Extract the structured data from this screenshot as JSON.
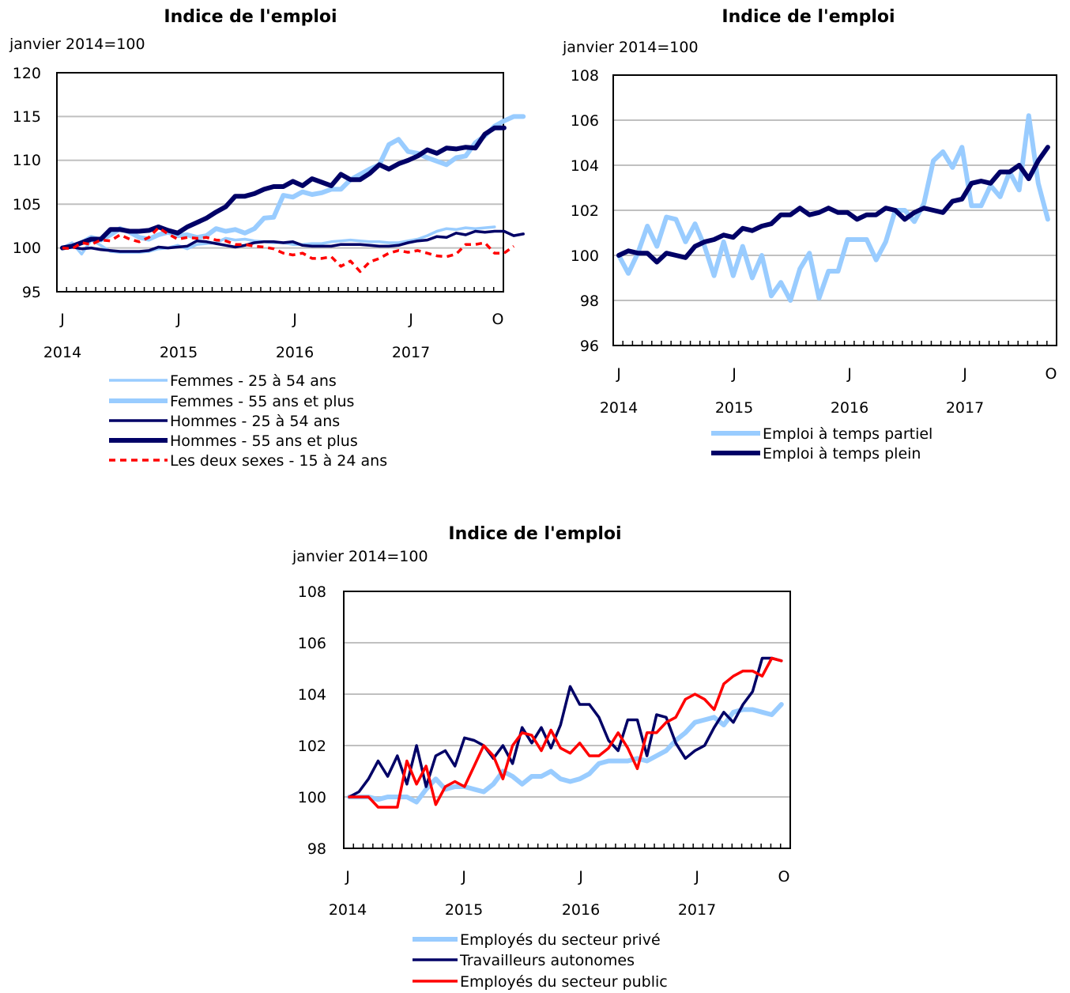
{
  "chart_data": [
    {
      "type": "line",
      "title": "Indice de l'emploi",
      "ylabel": "janvier 2014=100",
      "ylim": [
        95,
        120
      ],
      "yticks": [
        "95",
        "100",
        "105",
        "110",
        "115",
        "120"
      ],
      "x_tick_labels": [
        "J",
        "J",
        "J",
        "J",
        "O"
      ],
      "x_year_labels": [
        "2014",
        "2015",
        "2016",
        "2017"
      ],
      "x_range": "janvier 2014 – octobre 2017 (mensuel)",
      "grid": "horizontal",
      "legend_position": "bottom",
      "series": [
        {
          "name": "Femmes - 25 à 54 ans",
          "color": "#99ccff",
          "style": "thin",
          "values": [
            100.0,
            100.6,
            99.3,
            100.9,
            100.3,
            99.6,
            99.5,
            99.5,
            99.5,
            99.6,
            99.9,
            100.0,
            100.3,
            99.9,
            100.4,
            100.5,
            100.6,
            101.1,
            100.9,
            101.0,
            100.8,
            100.7,
            100.6,
            100.6,
            100.4,
            100.4,
            100.5,
            100.5,
            100.7,
            100.8,
            100.9,
            100.8,
            100.7,
            100.7,
            100.6,
            100.6,
            100.8,
            101.0,
            101.4,
            101.9,
            102.2,
            102.1,
            102.3,
            102.2,
            102.3,
            102.4
          ]
        },
        {
          "name": "Femmes - 55 ans et plus",
          "color": "#99ccff",
          "style": "thick",
          "values": [
            100.0,
            100.2,
            100.6,
            101.2,
            100.9,
            101.5,
            102.2,
            101.8,
            101.2,
            101.0,
            101.5,
            101.8,
            101.4,
            101.5,
            101.2,
            101.4,
            102.2,
            101.9,
            102.1,
            101.7,
            102.2,
            103.4,
            103.5,
            106.0,
            105.8,
            106.4,
            106.1,
            106.3,
            106.7,
            106.7,
            107.8,
            108.4,
            109.0,
            109.5,
            111.8,
            112.4,
            111.0,
            110.8,
            110.3,
            109.9,
            109.5,
            110.3,
            110.5,
            112.0,
            112.8,
            113.9,
            114.5,
            115.0,
            115.0
          ]
        },
        {
          "name": "Hommes - 25 à 54 ans",
          "color": "#000066",
          "style": "thin",
          "values": [
            100.0,
            100.1,
            99.9,
            100.0,
            99.8,
            99.7,
            99.6,
            99.6,
            99.6,
            99.7,
            100.1,
            100.0,
            100.1,
            100.2,
            100.8,
            100.7,
            100.5,
            100.3,
            100.1,
            100.3,
            100.6,
            100.7,
            100.7,
            100.6,
            100.7,
            100.3,
            100.2,
            100.2,
            100.2,
            100.4,
            100.4,
            100.4,
            100.3,
            100.2,
            100.2,
            100.3,
            100.6,
            100.8,
            100.9,
            101.3,
            101.2,
            101.7,
            101.5,
            101.9,
            101.8,
            101.9,
            101.9,
            101.4,
            101.6
          ]
        },
        {
          "name": "Hommes - 55 ans et plus",
          "color": "#000066",
          "style": "thick",
          "values": [
            100.0,
            100.2,
            100.6,
            101.0,
            101.0,
            102.1,
            102.1,
            101.9,
            101.9,
            102.0,
            102.4,
            102.0,
            101.7,
            102.4,
            102.9,
            103.4,
            104.1,
            104.7,
            105.9,
            105.9,
            106.2,
            106.7,
            107.0,
            107.0,
            107.6,
            107.1,
            107.9,
            107.5,
            107.1,
            108.4,
            107.8,
            107.8,
            108.5,
            109.5,
            109.0,
            109.6,
            110.0,
            110.5,
            111.2,
            110.8,
            111.4,
            111.3,
            111.5,
            111.4,
            113.0,
            113.7,
            113.7
          ]
        },
        {
          "name": "Les deux sexes - 15 à 24 ans",
          "color": "#ff0000",
          "style": "dashed",
          "values": [
            100.0,
            99.9,
            100.6,
            100.4,
            100.9,
            100.8,
            101.5,
            101.0,
            100.7,
            101.2,
            102.3,
            101.6,
            101.0,
            101.2,
            101.1,
            101.2,
            100.9,
            100.8,
            100.4,
            100.4,
            100.2,
            100.1,
            99.9,
            99.4,
            99.2,
            99.4,
            98.8,
            98.8,
            99.0,
            97.9,
            98.5,
            97.3,
            98.4,
            98.8,
            99.4,
            99.7,
            99.5,
            99.7,
            99.4,
            99.1,
            99.0,
            99.3,
            100.4,
            100.4,
            100.6,
            99.4,
            99.4,
            100.2
          ]
        }
      ]
    },
    {
      "type": "line",
      "title": "Indice de l'emploi",
      "ylabel": "janvier 2014=100",
      "ylim": [
        96,
        108
      ],
      "yticks": [
        "96",
        "98",
        "100",
        "102",
        "104",
        "106",
        "108"
      ],
      "x_tick_labels": [
        "J",
        "J",
        "J",
        "J",
        "O"
      ],
      "x_year_labels": [
        "2014",
        "2015",
        "2016",
        "2017"
      ],
      "x_range": "janvier 2014 – octobre 2017 (mensuel)",
      "grid": "horizontal",
      "legend_position": "bottom",
      "series": [
        {
          "name": "Emploi à temps partiel",
          "color": "#99ccff",
          "style": "thick",
          "values": [
            100.0,
            99.2,
            100.1,
            101.3,
            100.4,
            101.7,
            101.6,
            100.6,
            101.4,
            100.4,
            99.1,
            100.6,
            99.1,
            100.4,
            99.0,
            100.0,
            98.2,
            98.8,
            98.0,
            99.4,
            100.1,
            98.1,
            99.3,
            99.3,
            100.7,
            100.7,
            100.7,
            99.8,
            100.6,
            102.0,
            102.0,
            101.5,
            102.3,
            104.2,
            104.6,
            103.9,
            104.8,
            102.2,
            102.2,
            103.1,
            102.6,
            103.7,
            102.9,
            106.2,
            103.2,
            101.6
          ]
        },
        {
          "name": "Emploi à temps plein",
          "color": "#000066",
          "style": "thick",
          "values": [
            100.0,
            100.2,
            100.1,
            100.1,
            99.7,
            100.1,
            100.0,
            99.9,
            100.4,
            100.6,
            100.7,
            100.9,
            100.8,
            101.2,
            101.1,
            101.3,
            101.4,
            101.8,
            101.8,
            102.1,
            101.8,
            101.9,
            102.1,
            101.9,
            101.9,
            101.6,
            101.8,
            101.8,
            102.1,
            102.0,
            101.6,
            101.9,
            102.1,
            102.0,
            101.9,
            102.4,
            102.5,
            103.2,
            103.3,
            103.2,
            103.7,
            103.7,
            104.0,
            103.4,
            104.2,
            104.8
          ]
        }
      ]
    },
    {
      "type": "line",
      "title": "Indice de l'emploi",
      "ylabel": "janvier 2014=100",
      "ylim": [
        98,
        108
      ],
      "yticks": [
        "98",
        "100",
        "102",
        "104",
        "106",
        "108"
      ],
      "x_tick_labels": [
        "J",
        "J",
        "J",
        "J",
        "O"
      ],
      "x_year_labels": [
        "2014",
        "2015",
        "2016",
        "2017"
      ],
      "x_range": "janvier 2014 – octobre 2017 (mensuel)",
      "grid": "horizontal",
      "legend_position": "bottom",
      "series": [
        {
          "name": "Employés du secteur privé",
          "color": "#99ccff",
          "style": "thick",
          "values": [
            100.0,
            100.0,
            100.0,
            99.9,
            100.0,
            100.0,
            100.0,
            99.8,
            100.3,
            100.7,
            100.3,
            100.4,
            100.4,
            100.3,
            100.2,
            100.5,
            101.0,
            100.8,
            100.5,
            100.8,
            100.8,
            101.0,
            100.7,
            100.6,
            100.7,
            100.9,
            101.3,
            101.4,
            101.4,
            101.4,
            101.5,
            101.4,
            101.6,
            101.8,
            102.2,
            102.5,
            102.9,
            103.0,
            103.1,
            102.8,
            103.3,
            103.4,
            103.4,
            103.3,
            103.2,
            103.6
          ]
        },
        {
          "name": "Travailleurs autonomes",
          "color": "#000066",
          "style": "thin",
          "values": [
            100.0,
            100.2,
            100.7,
            101.4,
            100.8,
            101.6,
            100.5,
            102.0,
            100.4,
            101.6,
            101.8,
            101.2,
            102.3,
            102.2,
            102.0,
            101.5,
            102.0,
            101.3,
            102.7,
            102.1,
            102.7,
            101.9,
            102.8,
            104.3,
            103.6,
            103.6,
            103.1,
            102.2,
            101.8,
            103.0,
            103.0,
            101.6,
            103.2,
            103.1,
            102.1,
            101.5,
            101.8,
            102.0,
            102.7,
            103.3,
            102.9,
            103.6,
            104.1,
            105.4,
            105.4,
            105.3
          ]
        },
        {
          "name": "Employés du secteur public",
          "color": "#ff0000",
          "style": "thin",
          "values": [
            100.0,
            100.0,
            100.0,
            99.6,
            99.6,
            99.6,
            101.4,
            100.5,
            101.2,
            99.7,
            100.4,
            100.6,
            100.4,
            101.2,
            102.0,
            101.6,
            100.7,
            102.0,
            102.5,
            102.4,
            101.8,
            102.6,
            101.9,
            101.7,
            102.1,
            101.6,
            101.6,
            101.9,
            102.5,
            101.9,
            101.1,
            102.5,
            102.5,
            102.9,
            103.1,
            103.8,
            104.0,
            103.8,
            103.4,
            104.4,
            104.7,
            104.9,
            104.9,
            104.7,
            105.4,
            105.3
          ]
        }
      ]
    }
  ]
}
